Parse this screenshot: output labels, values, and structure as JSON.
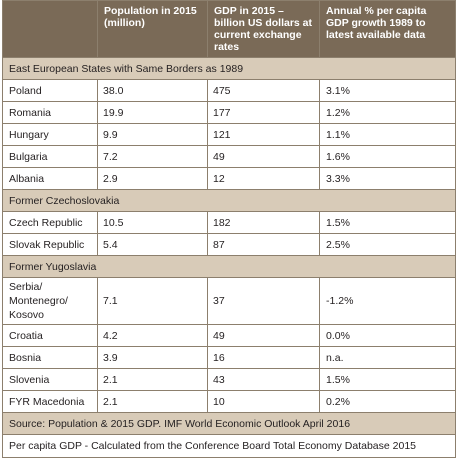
{
  "headers": [
    "",
    "Population in 2015 (million)",
    "GDP in 2015 – billion US dollars at current exchange rates",
    "Annual % per capita GDP growth 1989 to latest available data"
  ],
  "sections": [
    {
      "title": "East European States with Same Borders as 1989",
      "rows": [
        {
          "country": "Poland",
          "population": "38.0",
          "gdp": "475",
          "growth": "3.1%"
        },
        {
          "country": "Romania",
          "population": "19.9",
          "gdp": "177",
          "growth": "1.2%"
        },
        {
          "country": "Hungary",
          "population": "9.9",
          "gdp": "121",
          "growth": "1.1%"
        },
        {
          "country": "Bulgaria",
          "population": "7.2",
          "gdp": "49",
          "growth": "1.6%"
        },
        {
          "country": "Albania",
          "population": "2.9",
          "gdp": "12",
          "growth": "3.3%"
        }
      ]
    },
    {
      "title": "Former Czechoslovakia",
      "rows": [
        {
          "country": "Czech Republic",
          "population": "10.5",
          "gdp": "182",
          "growth": "1.5%"
        },
        {
          "country": "Slovak Republic",
          "population": "5.4",
          "gdp": "87",
          "growth": "2.5%"
        }
      ]
    },
    {
      "title": "Former Yugoslavia",
      "rows": [
        {
          "country": "Serbia/ Montenegro/ Kosovo",
          "population": "7.1",
          "gdp": "37",
          "growth": "-1.2%"
        },
        {
          "country": "Croatia",
          "population": "4.2",
          "gdp": "49",
          "growth": "0.0%"
        },
        {
          "country": "Bosnia",
          "population": "3.9",
          "gdp": "16",
          "growth": "n.a."
        },
        {
          "country": "Slovenia",
          "population": "2.1",
          "gdp": "43",
          "growth": "1.5%"
        },
        {
          "country": "FYR Macedonia",
          "population": "2.1",
          "gdp": "10",
          "growth": "0.2%"
        }
      ]
    }
  ],
  "footer": {
    "source": "Source: Population & 2015 GDP. IMF World Economic Outlook April 2016",
    "note": "Per capita GDP - Calculated from the Conference Board Total Economy Database 2015"
  },
  "colors": {
    "header_bg": "#7a6a57",
    "section_bg": "#d8cbb8",
    "border": "#8c7f6d"
  }
}
